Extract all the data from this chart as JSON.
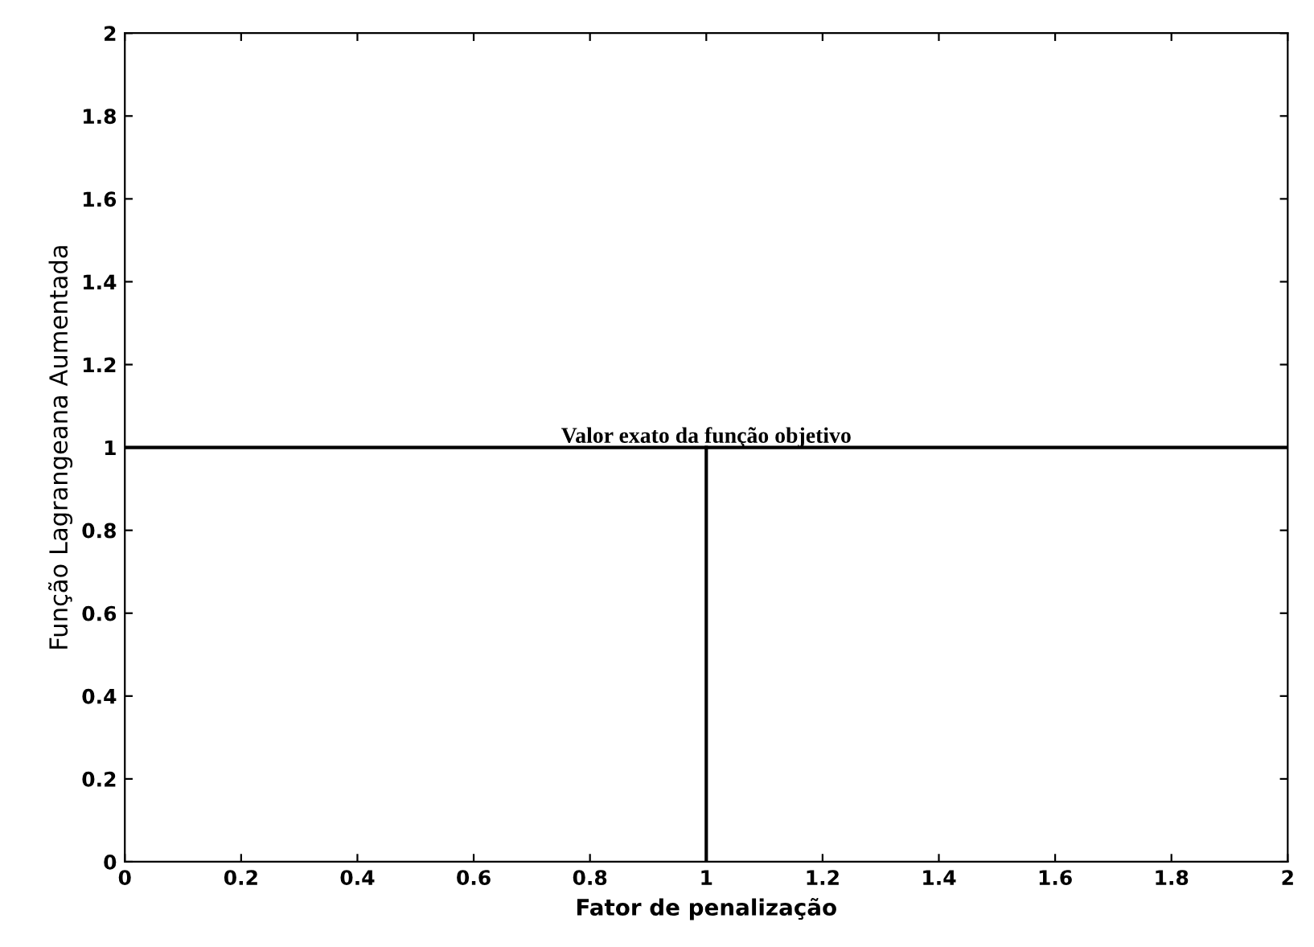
{
  "chart_data": {
    "type": "line",
    "xlabel": "Fator de penalização",
    "ylabel": "Função Lagrangeana Aumentada",
    "series": [
      {
        "color": "#000000",
        "x": [
          1,
          1
        ],
        "values": [
          0,
          1
        ]
      }
    ],
    "ref_lines": [
      {
        "axis": "y",
        "value": 1,
        "label": "Valor exato da função objetivo",
        "color": "#000000"
      }
    ],
    "xlim": [
      0,
      2
    ],
    "ylim": [
      0,
      2
    ],
    "xticks": [
      0,
      0.2,
      0.4,
      0.6,
      0.8,
      1,
      1.2,
      1.4,
      1.6,
      1.8,
      2
    ],
    "yticks": [
      0,
      0.2,
      0.4,
      0.6,
      0.8,
      1,
      1.2,
      1.4,
      1.6,
      1.8,
      2
    ],
    "grid": false,
    "legend": false
  }
}
